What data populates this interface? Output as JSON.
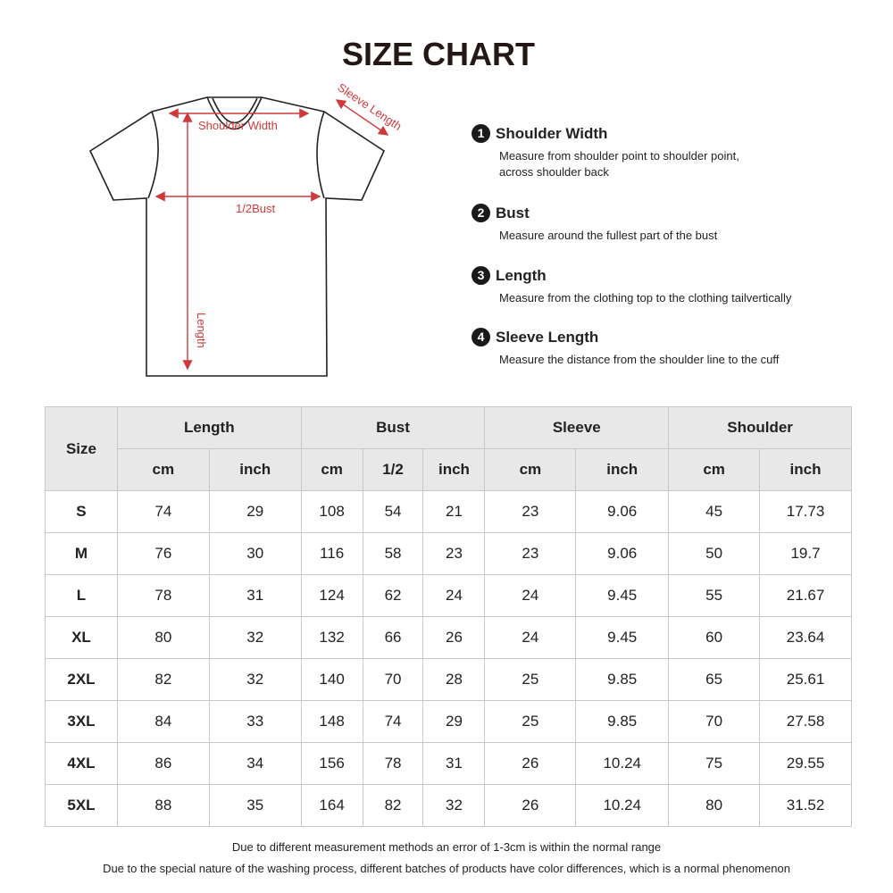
{
  "title": "SIZE CHART",
  "diagram": {
    "shoulder": "Shoulder Width",
    "bust": "1/2Bust",
    "length": "Length",
    "sleeve": "Sleeve Length"
  },
  "measurements": [
    {
      "num": "1",
      "title": "Shoulder Width",
      "desc": "Measure from shoulder point to shoulder point,\nacross shoulder back"
    },
    {
      "num": "2",
      "title": "Bust",
      "desc": "Measure around the fullest part of the bust"
    },
    {
      "num": "3",
      "title": "Length",
      "desc": "Measure from the clothing top to the clothing tailvertically"
    },
    {
      "num": "4",
      "title": "Sleeve Length",
      "desc": "Measure the distance from the shoulder line to the cuff"
    }
  ],
  "table": {
    "size_header": "Size",
    "groups": [
      "Length",
      "Bust",
      "Sleeve",
      "Shoulder"
    ],
    "subheaders": [
      "cm",
      "inch",
      "cm",
      "1/2",
      "inch",
      "cm",
      "inch",
      "cm",
      "inch"
    ],
    "rows": [
      [
        "S",
        "74",
        "29",
        "108",
        "54",
        "21",
        "23",
        "9.06",
        "45",
        "17.73"
      ],
      [
        "M",
        "76",
        "30",
        "116",
        "58",
        "23",
        "23",
        "9.06",
        "50",
        "19.7"
      ],
      [
        "L",
        "78",
        "31",
        "124",
        "62",
        "24",
        "24",
        "9.45",
        "55",
        "21.67"
      ],
      [
        "XL",
        "80",
        "32",
        "132",
        "66",
        "26",
        "24",
        "9.45",
        "60",
        "23.64"
      ],
      [
        "2XL",
        "82",
        "32",
        "140",
        "70",
        "28",
        "25",
        "9.85",
        "65",
        "25.61"
      ],
      [
        "3XL",
        "84",
        "33",
        "148",
        "74",
        "29",
        "25",
        "9.85",
        "70",
        "27.58"
      ],
      [
        "4XL",
        "86",
        "34",
        "156",
        "78",
        "31",
        "26",
        "10.24",
        "75",
        "29.55"
      ],
      [
        "5XL",
        "88",
        "35",
        "164",
        "82",
        "32",
        "26",
        "10.24",
        "80",
        "31.52"
      ]
    ]
  },
  "notes": [
    "Due to different measurement methods an error of 1-3cm is within the normal range",
    "Due to the special nature of the washing process, different batches of products have color differences, which is a normal phenomenon"
  ]
}
